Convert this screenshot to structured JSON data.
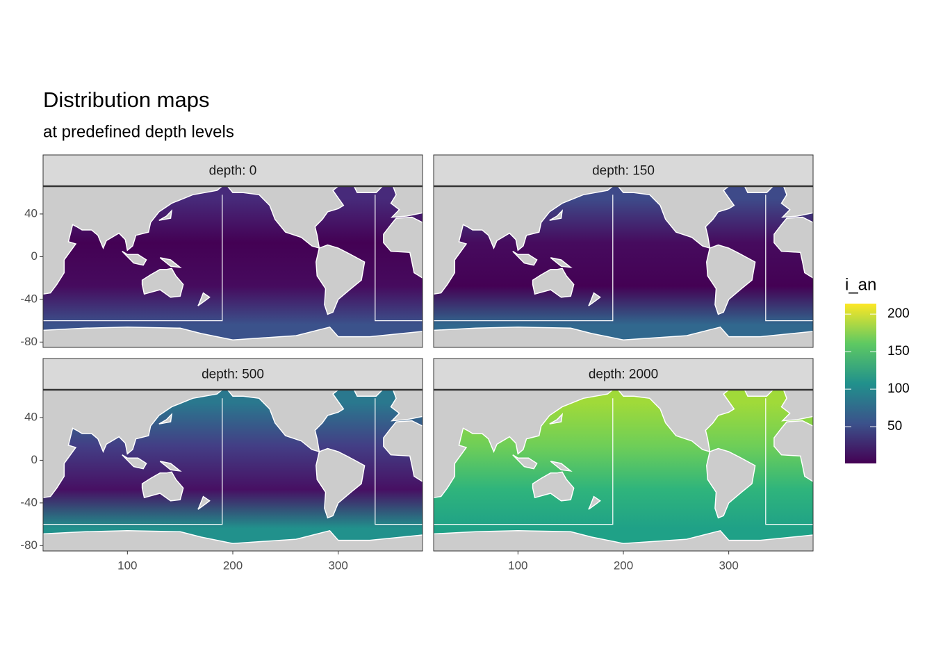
{
  "chart_data": {
    "type": "raster",
    "title": "Distribution maps",
    "subtitle": "at predefined depth levels",
    "panels": [
      {
        "label": "depth: 0",
        "colors": [
          "#472a7a",
          "#440154",
          "#460b5e",
          "#3b528b"
        ]
      },
      {
        "label": "depth: 150",
        "colors": [
          "#3e4a89",
          "#460b5e",
          "#440154",
          "#31688e"
        ]
      },
      {
        "label": "depth: 500",
        "colors": [
          "#2a788e",
          "#433e85",
          "#471063",
          "#21918c"
        ]
      },
      {
        "label": "depth: 2000",
        "colors": [
          "#a0da39",
          "#6ece58",
          "#2fb47c",
          "#1fa187"
        ]
      }
    ],
    "xlim": [
      20,
      380
    ],
    "xticks": [
      100,
      200,
      300
    ],
    "ylim": [
      -85,
      66
    ],
    "yticks": [
      40,
      0,
      -40,
      -80
    ],
    "legend": {
      "title": "i_an",
      "lim": [
        1,
        214
      ],
      "ticks": [
        50,
        100,
        150,
        200
      ],
      "colors": [
        "#440154",
        "#3b528b",
        "#21918c",
        "#5ec962",
        "#fde725"
      ]
    }
  }
}
